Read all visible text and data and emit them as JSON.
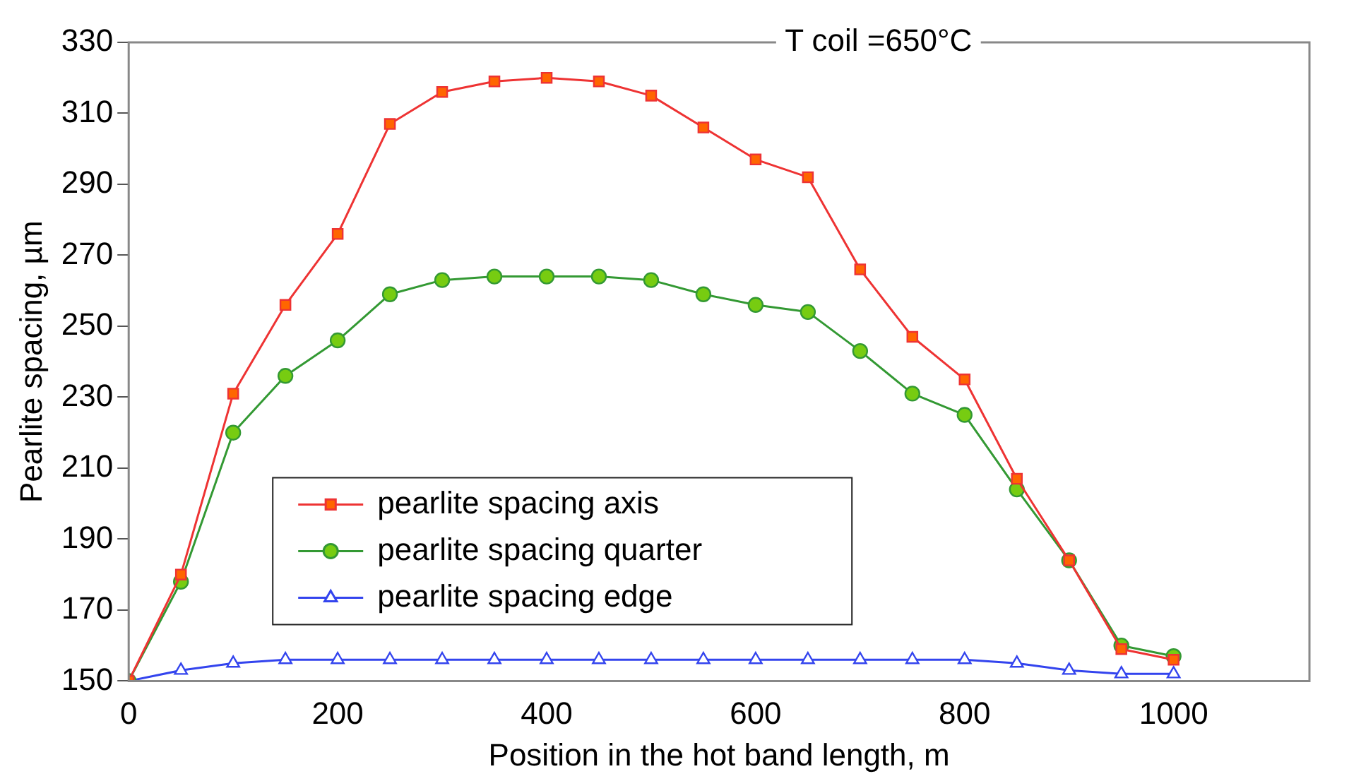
{
  "chart_data": {
    "type": "line",
    "title": "T coil =650°C",
    "xlabel": "Position in the hot band length, m",
    "ylabel": "Pearlite spacing, µm",
    "x": [
      0,
      50,
      100,
      150,
      200,
      250,
      300,
      350,
      400,
      450,
      500,
      550,
      600,
      650,
      700,
      750,
      800,
      850,
      900,
      950,
      1000
    ],
    "series": [
      {
        "name": "pearlite spacing axis",
        "color": "#ee3333",
        "marker": "square",
        "values": [
          150,
          180,
          231,
          256,
          276,
          307,
          316,
          319,
          320,
          319,
          315,
          306,
          297,
          292,
          266,
          247,
          235,
          207,
          184,
          159,
          156
        ]
      },
      {
        "name": "pearlite spacing quarter",
        "color": "#339933",
        "marker": "circle",
        "values": [
          150,
          178,
          220,
          236,
          246,
          259,
          263,
          264,
          264,
          264,
          263,
          259,
          256,
          254,
          243,
          231,
          225,
          204,
          184,
          160,
          157
        ]
      },
      {
        "name": "pearlite spacing edge",
        "color": "#3344ee",
        "marker": "triangle",
        "values": [
          150,
          153,
          155,
          156,
          156,
          156,
          156,
          156,
          156,
          156,
          156,
          156,
          156,
          156,
          156,
          156,
          156,
          155,
          153,
          152,
          152
        ]
      }
    ],
    "xlim": [
      0,
      1130
    ],
    "xticks": [
      0,
      200,
      400,
      600,
      800,
      1000
    ],
    "ylim": [
      150,
      330
    ],
    "yticks": [
      150,
      170,
      190,
      210,
      230,
      250,
      270,
      290,
      310,
      330
    ],
    "grid": false,
    "legend": "bottom left",
    "line_style": "solid"
  }
}
